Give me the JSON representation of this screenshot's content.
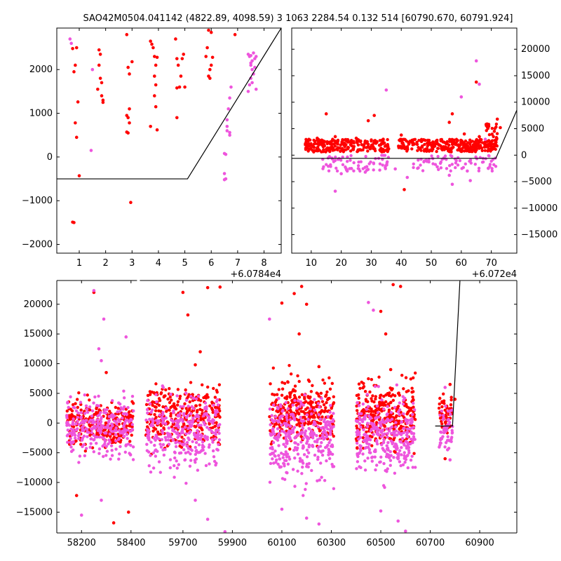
{
  "title": "SAO42M0504.041142 (4822.89, 4098.59)   3 1063 2284.54 0.132 514 [60790.670, 60791.924]",
  "colors": {
    "red": "#ff0000",
    "magenta": "#ee55dd",
    "line": "#000000"
  },
  "chart_data": [
    {
      "id": "top-left",
      "type": "scatter",
      "xlim": [
        0.15,
        8.65
      ],
      "ylim": [
        -2200,
        2950
      ],
      "xticks": [
        1,
        2,
        3,
        4,
        5,
        6,
        7,
        8
      ],
      "yticks": [
        -2000,
        -1000,
        0,
        1000,
        2000
      ],
      "tick_labels_x": [
        "1",
        "2",
        "3",
        "4",
        "5",
        "6",
        "7",
        "8"
      ],
      "tick_labels_y": [
        "−2000",
        "−1000",
        "0",
        "1000",
        "2000"
      ],
      "offset_label": "+6.0784e4",
      "line": {
        "x": [
          0.15,
          5.1,
          8.65
        ],
        "y": [
          -500,
          -500,
          2950
        ]
      },
      "series": [
        {
          "name": "red",
          "points": [
            [
              0.7,
              2980
            ],
            [
              0.75,
              2480
            ],
            [
              0.8,
              1950
            ],
            [
              0.85,
              2100
            ],
            [
              0.85,
              780
            ],
            [
              0.9,
              450
            ],
            [
              0.9,
              2500
            ],
            [
              0.95,
              1260
            ],
            [
              1.0,
              -430
            ],
            [
              0.75,
              -1490
            ],
            [
              0.8,
              -1500
            ],
            [
              1.75,
              2450
            ],
            [
              1.8,
              2350
            ],
            [
              1.75,
              2100
            ],
            [
              1.8,
              1800
            ],
            [
              1.85,
              1700
            ],
            [
              1.85,
              1400
            ],
            [
              1.9,
              1300
            ],
            [
              1.9,
              1250
            ],
            [
              1.7,
              1550
            ],
            [
              2.8,
              2800
            ],
            [
              2.85,
              2050
            ],
            [
              2.9,
              1900
            ],
            [
              3.0,
              2180
            ],
            [
              2.8,
              950
            ],
            [
              2.85,
              900
            ],
            [
              2.9,
              1100
            ],
            [
              2.8,
              570
            ],
            [
              2.85,
              550
            ],
            [
              2.9,
              780
            ],
            [
              2.95,
              -1040
            ],
            [
              3.7,
              2650
            ],
            [
              3.75,
              2580
            ],
            [
              3.8,
              2500
            ],
            [
              3.85,
              2300
            ],
            [
              3.9,
              2100
            ],
            [
              3.85,
              1850
            ],
            [
              3.9,
              1650
            ],
            [
              3.95,
              2280
            ],
            [
              3.85,
              1400
            ],
            [
              3.9,
              1150
            ],
            [
              3.7,
              700
            ],
            [
              3.95,
              620
            ],
            [
              4.65,
              2700
            ],
            [
              4.7,
              2250
            ],
            [
              4.75,
              2100
            ],
            [
              4.8,
              1600
            ],
            [
              4.85,
              1850
            ],
            [
              4.9,
              2250
            ],
            [
              4.95,
              2350
            ],
            [
              5.0,
              1600
            ],
            [
              4.7,
              1580
            ],
            [
              4.7,
              900
            ],
            [
              5.8,
              2300
            ],
            [
              5.85,
              2500
            ],
            [
              5.9,
              2900
            ],
            [
              5.95,
              2000
            ],
            [
              6.0,
              2100
            ],
            [
              6.05,
              2280
            ],
            [
              5.9,
              1850
            ],
            [
              5.95,
              1800
            ],
            [
              6.0,
              2850
            ],
            [
              6.9,
              2800
            ]
          ]
        },
        {
          "name": "magenta",
          "points": [
            [
              0.65,
              2700
            ],
            [
              0.7,
              2600
            ],
            [
              1.5,
              2000
            ],
            [
              1.45,
              150
            ],
            [
              6.5,
              -380
            ],
            [
              6.5,
              -520
            ],
            [
              6.55,
              -500
            ],
            [
              6.5,
              80
            ],
            [
              6.55,
              60
            ],
            [
              6.6,
              600
            ],
            [
              6.6,
              700
            ],
            [
              6.6,
              850
            ],
            [
              6.65,
              1100
            ],
            [
              6.7,
              1350
            ],
            [
              6.7,
              500
            ],
            [
              6.75,
              1600
            ],
            [
              6.7,
              560
            ],
            [
              7.4,
              2350
            ],
            [
              7.45,
              2300
            ],
            [
              7.5,
              2320
            ],
            [
              7.55,
              2200
            ],
            [
              7.6,
              2380
            ],
            [
              7.65,
              2250
            ],
            [
              7.7,
              2300
            ],
            [
              7.5,
              2100
            ],
            [
              7.55,
              2000
            ],
            [
              7.6,
              1900
            ],
            [
              7.5,
              1800
            ],
            [
              7.45,
              1650
            ],
            [
              7.55,
              1700
            ],
            [
              7.7,
              1550
            ],
            [
              7.4,
              1500
            ],
            [
              7.5,
              2150
            ],
            [
              7.65,
              2050
            ]
          ]
        }
      ]
    },
    {
      "id": "top-right",
      "type": "scatter",
      "xlim": [
        3.5,
        78.5
      ],
      "ylim": [
        -18500,
        24000
      ],
      "xticks": [
        10,
        20,
        30,
        40,
        50,
        60,
        70
      ],
      "yticks": [
        -15000,
        -10000,
        -5000,
        0,
        5000,
        10000,
        15000,
        20000
      ],
      "tick_labels_x": [
        "10",
        "20",
        "30",
        "40",
        "50",
        "60",
        "70"
      ],
      "tick_labels_y": [
        "−15000",
        "−10000",
        "−5000",
        "0",
        "5000",
        "10000",
        "15000",
        "20000"
      ],
      "offset_label": "+6.072e4",
      "line": {
        "x": [
          3.5,
          71.5,
          78.5
        ],
        "y": [
          -600,
          -600,
          8500
        ]
      },
      "series": [
        {
          "name": "red",
          "points": [
            [
              15,
              7800
            ],
            [
              18,
              3500
            ],
            [
              22,
              2600
            ],
            [
              29,
              6500
            ],
            [
              31,
              7500
            ],
            [
              40,
              3800
            ],
            [
              41,
              -6500
            ],
            [
              56,
              6200
            ],
            [
              57,
              7800
            ],
            [
              65,
              13800
            ],
            [
              70,
              2500
            ],
            [
              71,
              4500
            ],
            [
              72,
              6800
            ],
            [
              73,
              5200
            ],
            [
              12,
              3200
            ],
            [
              14,
              2400
            ],
            [
              16,
              900
            ],
            [
              25,
              3200
            ],
            [
              34,
              3000
            ],
            [
              48,
              2800
            ],
            [
              61,
              4000
            ],
            [
              66,
              3500
            ]
          ]
        },
        {
          "name": "magenta",
          "points": [
            [
              18,
              -6800
            ],
            [
              20,
              -3500
            ],
            [
              28,
              -3200
            ],
            [
              35,
              12300
            ],
            [
              42,
              -4200
            ],
            [
              56,
              -3800
            ],
            [
              57,
              -5500
            ],
            [
              60,
              11000
            ],
            [
              63,
              -4800
            ],
            [
              65,
              17800
            ],
            [
              66,
              13400
            ],
            [
              68,
              3000
            ],
            [
              69,
              -2500
            ],
            [
              22,
              -3000
            ],
            [
              38,
              -2600
            ],
            [
              52,
              -2200
            ],
            [
              62,
              -3000
            ]
          ]
        }
      ]
    },
    {
      "id": "bottom",
      "type": "scatter",
      "xlim": [
        58100,
        61050
      ],
      "ylim": [
        -18500,
        24000
      ],
      "broken_axis_gap": [
        58430,
        59520
      ],
      "xticks": [
        58200,
        58400,
        59700,
        59900,
        60100,
        60300,
        60500,
        60700,
        60900
      ],
      "yticks": [
        -15000,
        -10000,
        -5000,
        0,
        5000,
        10000,
        15000,
        20000
      ],
      "tick_labels_x": [
        "58200",
        "58400",
        "59700",
        "59900",
        "60100",
        "60300",
        "60500",
        "60700",
        "60900"
      ],
      "tick_labels_y": [
        "−15000",
        "−10000",
        "−5000",
        "0",
        "5000",
        "10000",
        "15000",
        "20000"
      ],
      "line": {
        "x": [
          60720,
          60790,
          60820
        ],
        "y": [
          -500,
          -500,
          24000
        ]
      },
      "series": [
        {
          "name": "red",
          "points": [
            [
              58250,
              22000
            ],
            [
              58300,
              8500
            ],
            [
              58180,
              -12200
            ],
            [
              58330,
              -16800
            ],
            [
              58390,
              -15000
            ],
            [
              59700,
              22000
            ],
            [
              59720,
              18200
            ],
            [
              59770,
              12000
            ],
            [
              59750,
              9800
            ],
            [
              59800,
              22800
            ],
            [
              59850,
              22900
            ],
            [
              60100,
              20200
            ],
            [
              60150,
              21800
            ],
            [
              60180,
              23000
            ],
            [
              60200,
              20000
            ],
            [
              60170,
              15000
            ],
            [
              60250,
              9500
            ],
            [
              60500,
              18800
            ],
            [
              60550,
              23300
            ],
            [
              60580,
              23000
            ],
            [
              60520,
              15000
            ],
            [
              60540,
              9000
            ],
            [
              60800,
              4000
            ],
            [
              60780,
              6500
            ],
            [
              60760,
              -6000
            ]
          ]
        },
        {
          "name": "magenta",
          "points": [
            [
              58250,
              22300
            ],
            [
              58290,
              17500
            ],
            [
              58270,
              12500
            ],
            [
              58280,
              10500
            ],
            [
              58380,
              14500
            ],
            [
              58200,
              -15500
            ],
            [
              58280,
              -13000
            ],
            [
              59750,
              -13000
            ],
            [
              59800,
              -16200
            ],
            [
              59870,
              -18300
            ],
            [
              60050,
              17500
            ],
            [
              60100,
              -14500
            ],
            [
              60200,
              -16000
            ],
            [
              60250,
              -17000
            ],
            [
              60450,
              20300
            ],
            [
              60470,
              19000
            ],
            [
              60500,
              -14800
            ],
            [
              60570,
              -16500
            ],
            [
              60600,
              -18200
            ],
            [
              60760,
              6000
            ],
            [
              60770,
              -4500
            ],
            [
              60780,
              -6200
            ]
          ]
        }
      ],
      "clusters": [
        {
          "x": [
            58140,
            58410
          ],
          "red_center": 0,
          "red_spread": 1800,
          "mag_center": -800,
          "mag_spread": 2300,
          "count": 260
        },
        {
          "x": [
            59550,
            59850
          ],
          "red_center": 1200,
          "red_spread": 2400,
          "mag_center": -1500,
          "mag_spread": 3000,
          "count": 300
        },
        {
          "x": [
            60050,
            60310
          ],
          "red_center": 1800,
          "red_spread": 2700,
          "mag_center": -2500,
          "mag_spread": 3200,
          "count": 320
        },
        {
          "x": [
            60400,
            60640
          ],
          "red_center": 1600,
          "red_spread": 2600,
          "mag_center": -2200,
          "mag_spread": 3100,
          "count": 300
        },
        {
          "x": [
            60735,
            60790
          ],
          "red_center": 1500,
          "red_spread": 1500,
          "mag_center": -800,
          "mag_spread": 1800,
          "count": 50
        }
      ]
    }
  ]
}
